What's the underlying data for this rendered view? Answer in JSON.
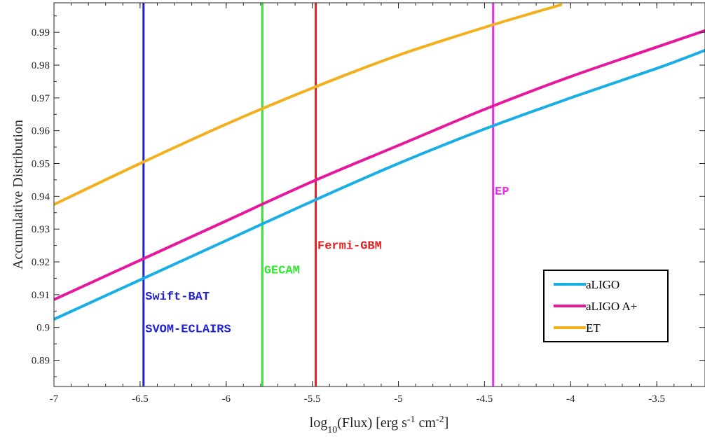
{
  "chart_data": {
    "type": "line",
    "xlabel": {
      "base": "log",
      "sub": "10",
      "mid": "(Flux) [erg s",
      "sup1": "-1",
      "mid2": " cm",
      "sup2": "-2",
      "end": "]"
    },
    "ylabel": "Accumulative Distribution",
    "xlim": [
      -7,
      -3.22
    ],
    "ylim": [
      0.882,
      0.999
    ],
    "xticks": [
      -7,
      -6.5,
      -6,
      -5.5,
      -5,
      -4.5,
      -4,
      -3.5
    ],
    "xtick_labels": [
      "-7",
      "-6.5",
      "-6",
      "-5.5",
      "-5",
      "-4.5",
      "-4",
      "-3.5"
    ],
    "yticks": [
      0.89,
      0.9,
      0.91,
      0.92,
      0.93,
      0.94,
      0.95,
      0.96,
      0.97,
      0.98,
      0.99
    ],
    "ytick_labels": [
      "0.89",
      "0.9",
      "0.91",
      "0.92",
      "0.93",
      "0.94",
      "0.95",
      "0.96",
      "0.97",
      "0.98",
      "0.99"
    ],
    "grid": false,
    "legend_position": "lower-right",
    "series": [
      {
        "name": "aLIGO",
        "color": "#1aaee6",
        "x": [
          -7,
          -6.5,
          -6,
          -5.5,
          -5,
          -4.5,
          -4,
          -3.5,
          -3.22
        ],
        "y": [
          0.9025,
          0.9145,
          0.9265,
          0.9385,
          0.95,
          0.9605,
          0.97,
          0.979,
          0.9845
        ]
      },
      {
        "name": "aLIGO A+",
        "color": "#e6199e",
        "x": [
          -7,
          -6.5,
          -6,
          -5.5,
          -5,
          -4.5,
          -4,
          -3.5,
          -3.22
        ],
        "y": [
          0.9085,
          0.9205,
          0.9325,
          0.9445,
          0.9555,
          0.9665,
          0.9765,
          0.9855,
          0.9905
        ]
      },
      {
        "name": "ET",
        "color": "#f2b01e",
        "x": [
          -7,
          -6.5,
          -6,
          -5.5,
          -5,
          -4.5,
          -4.05
        ],
        "y": [
          0.9375,
          0.95,
          0.962,
          0.973,
          0.983,
          0.9915,
          0.9985
        ]
      }
    ],
    "vertical_lines": [
      {
        "x": -6.48,
        "color": "#1f1fd6"
      },
      {
        "x": -5.79,
        "color": "#2ee62e"
      },
      {
        "x": -5.48,
        "color": "#e61f1f"
      },
      {
        "x": -4.45,
        "color": "#e62ee6"
      }
    ],
    "annotations": [
      {
        "text": "Swift-BAT",
        "x": -6.47,
        "y": 0.9085,
        "color": "#1f1fd6"
      },
      {
        "text": "SVOM-ECLAIRS",
        "x": -6.47,
        "y": 0.8985,
        "color": "#1f1fd6"
      },
      {
        "text": "GECAM",
        "x": -5.78,
        "y": 0.9165,
        "color": "#2ee62e"
      },
      {
        "text": "Fermi-GBM",
        "x": -5.47,
        "y": 0.924,
        "color": "#e61f1f"
      },
      {
        "text": "EP",
        "x": -4.44,
        "y": 0.9405,
        "color": "#e62ee6"
      }
    ]
  }
}
